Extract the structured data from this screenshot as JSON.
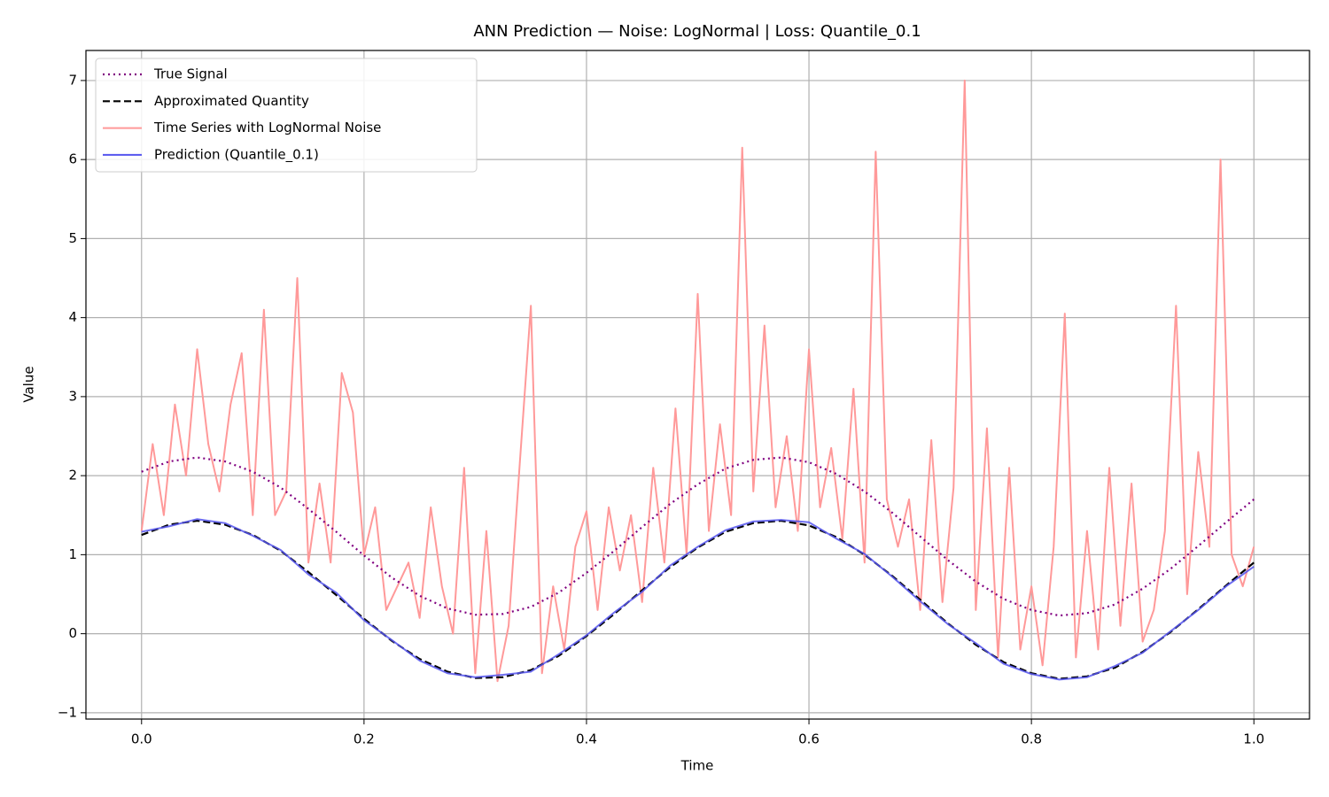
{
  "chart_data": {
    "type": "line",
    "title": "ANN Prediction — Noise: LogNormal | Loss: Quantile_0.1",
    "x_label": "Time",
    "y_label": "Value",
    "xlim": [
      -0.05,
      1.05
    ],
    "ylim": [
      -1.08,
      7.38
    ],
    "xticks": [
      {
        "value": 0,
        "label": "0.0"
      },
      0.2,
      0.4,
      0.6,
      0.8,
      {
        "value": 1,
        "label": "1.0"
      }
    ],
    "yticks": [
      {
        "value": -1,
        "label": "−1"
      },
      0,
      1,
      2,
      3,
      4,
      5,
      6,
      7
    ],
    "grid": true,
    "legend": "upper left",
    "series": [
      {
        "name": "True Signal",
        "color": "#800080",
        "style": "dotted",
        "x": [
          0,
          0.025,
          0.05,
          0.075,
          0.1,
          0.125,
          0.15,
          0.175,
          0.2,
          0.225,
          0.25,
          0.275,
          0.3,
          0.325,
          0.35,
          0.375,
          0.4,
          0.425,
          0.45,
          0.475,
          0.5,
          0.525,
          0.55,
          0.575,
          0.6,
          0.625,
          0.65,
          0.675,
          0.7,
          0.725,
          0.75,
          0.775,
          0.8,
          0.825,
          0.85,
          0.875,
          0.9,
          0.925,
          0.95,
          0.975,
          1
        ],
        "values": [
          2.05,
          2.18,
          2.23,
          2.18,
          2.05,
          1.85,
          1.58,
          1.29,
          0.99,
          0.71,
          0.48,
          0.32,
          0.24,
          0.25,
          0.34,
          0.52,
          0.77,
          1.05,
          1.35,
          1.64,
          1.89,
          2.09,
          2.2,
          2.23,
          2.17,
          2.02,
          1.8,
          1.53,
          1.23,
          0.93,
          0.66,
          0.44,
          0.3,
          0.23,
          0.26,
          0.37,
          0.57,
          0.82,
          1.11,
          1.41,
          1.7
        ]
      },
      {
        "name": "Approximated Quantity",
        "color": "#000000",
        "style": "dashed",
        "x": [
          0,
          0.025,
          0.05,
          0.075,
          0.1,
          0.125,
          0.15,
          0.175,
          0.2,
          0.225,
          0.25,
          0.275,
          0.3,
          0.325,
          0.35,
          0.375,
          0.4,
          0.425,
          0.45,
          0.475,
          0.5,
          0.525,
          0.55,
          0.575,
          0.6,
          0.625,
          0.65,
          0.675,
          0.7,
          0.725,
          0.75,
          0.775,
          0.8,
          0.825,
          0.85,
          0.875,
          0.9,
          0.925,
          0.95,
          0.975,
          1
        ],
        "values": [
          1.25,
          1.38,
          1.43,
          1.38,
          1.25,
          1.05,
          0.78,
          0.49,
          0.19,
          -0.09,
          -0.32,
          -0.48,
          -0.56,
          -0.55,
          -0.46,
          -0.28,
          -0.03,
          0.25,
          0.55,
          0.84,
          1.09,
          1.29,
          1.4,
          1.43,
          1.37,
          1.22,
          1.0,
          0.73,
          0.43,
          0.13,
          -0.14,
          -0.36,
          -0.5,
          -0.57,
          -0.54,
          -0.43,
          -0.23,
          0.02,
          0.31,
          0.61,
          0.9
        ]
      },
      {
        "name": "Time Series with LogNormal Noise",
        "color": "#ff9999",
        "style": "solid",
        "x": [
          0,
          0.01,
          0.02,
          0.03,
          0.04,
          0.05,
          0.06,
          0.07,
          0.08,
          0.09,
          0.1,
          0.11,
          0.12,
          0.13,
          0.14,
          0.15,
          0.16,
          0.17,
          0.18,
          0.19,
          0.2,
          0.21,
          0.22,
          0.23,
          0.24,
          0.25,
          0.26,
          0.27,
          0.28,
          0.29,
          0.3,
          0.31,
          0.32,
          0.33,
          0.34,
          0.35,
          0.36,
          0.37,
          0.38,
          0.39,
          0.4,
          0.41,
          0.42,
          0.43,
          0.44,
          0.45,
          0.46,
          0.47,
          0.48,
          0.49,
          0.5,
          0.51,
          0.52,
          0.53,
          0.54,
          0.55,
          0.56,
          0.57,
          0.58,
          0.59,
          0.6,
          0.61,
          0.62,
          0.63,
          0.64,
          0.65,
          0.66,
          0.67,
          0.68,
          0.69,
          0.7,
          0.71,
          0.72,
          0.73,
          0.74,
          0.75,
          0.76,
          0.77,
          0.78,
          0.79,
          0.8,
          0.81,
          0.82,
          0.83,
          0.84,
          0.85,
          0.86,
          0.87,
          0.88,
          0.89,
          0.9,
          0.91,
          0.92,
          0.93,
          0.94,
          0.95,
          0.96,
          0.97,
          0.98,
          0.99,
          1
        ],
        "values": [
          1.3,
          2.4,
          1.5,
          2.9,
          2.0,
          3.6,
          2.4,
          1.8,
          2.9,
          3.55,
          1.5,
          4.1,
          1.5,
          1.8,
          4.5,
          0.9,
          1.9,
          0.9,
          3.3,
          2.8,
          1.0,
          1.6,
          0.3,
          0.6,
          0.9,
          0.2,
          1.6,
          0.6,
          0.0,
          2.1,
          -0.5,
          1.3,
          -0.6,
          0.1,
          2.15,
          4.15,
          -0.5,
          0.6,
          -0.2,
          1.1,
          1.55,
          0.3,
          1.6,
          0.8,
          1.5,
          0.4,
          2.1,
          0.9,
          2.85,
          1.0,
          4.3,
          1.3,
          2.65,
          1.5,
          6.15,
          1.8,
          3.9,
          1.6,
          2.5,
          1.3,
          3.6,
          1.6,
          2.35,
          1.2,
          3.1,
          0.9,
          6.1,
          1.7,
          1.1,
          1.7,
          0.3,
          2.45,
          0.4,
          1.85,
          7.0,
          0.3,
          2.6,
          -0.3,
          2.1,
          -0.2,
          0.6,
          -0.4,
          1.1,
          4.05,
          -0.3,
          1.3,
          -0.2,
          2.1,
          0.1,
          1.9,
          -0.1,
          0.3,
          1.3,
          4.15,
          0.5,
          2.3,
          1.1,
          6.0,
          1.0,
          0.6,
          1.1
        ]
      },
      {
        "name": "Prediction (Quantile_0.1)",
        "color": "#5555ee",
        "style": "solid",
        "x": [
          0,
          0.025,
          0.05,
          0.075,
          0.1,
          0.125,
          0.15,
          0.175,
          0.2,
          0.225,
          0.25,
          0.275,
          0.3,
          0.325,
          0.35,
          0.375,
          0.4,
          0.425,
          0.45,
          0.475,
          0.5,
          0.525,
          0.55,
          0.575,
          0.6,
          0.625,
          0.65,
          0.675,
          0.7,
          0.725,
          0.75,
          0.775,
          0.8,
          0.825,
          0.85,
          0.875,
          0.9,
          0.925,
          0.95,
          0.975,
          1
        ],
        "values": [
          1.29,
          1.36,
          1.45,
          1.4,
          1.24,
          1.06,
          0.75,
          0.52,
          0.17,
          -0.08,
          -0.34,
          -0.5,
          -0.55,
          -0.52,
          -0.48,
          -0.26,
          -0.02,
          0.27,
          0.53,
          0.86,
          1.1,
          1.31,
          1.42,
          1.44,
          1.41,
          1.2,
          1.01,
          0.72,
          0.41,
          0.12,
          -0.12,
          -0.38,
          -0.51,
          -0.58,
          -0.55,
          -0.41,
          -0.24,
          0.03,
          0.3,
          0.6,
          0.85
        ]
      }
    ]
  }
}
